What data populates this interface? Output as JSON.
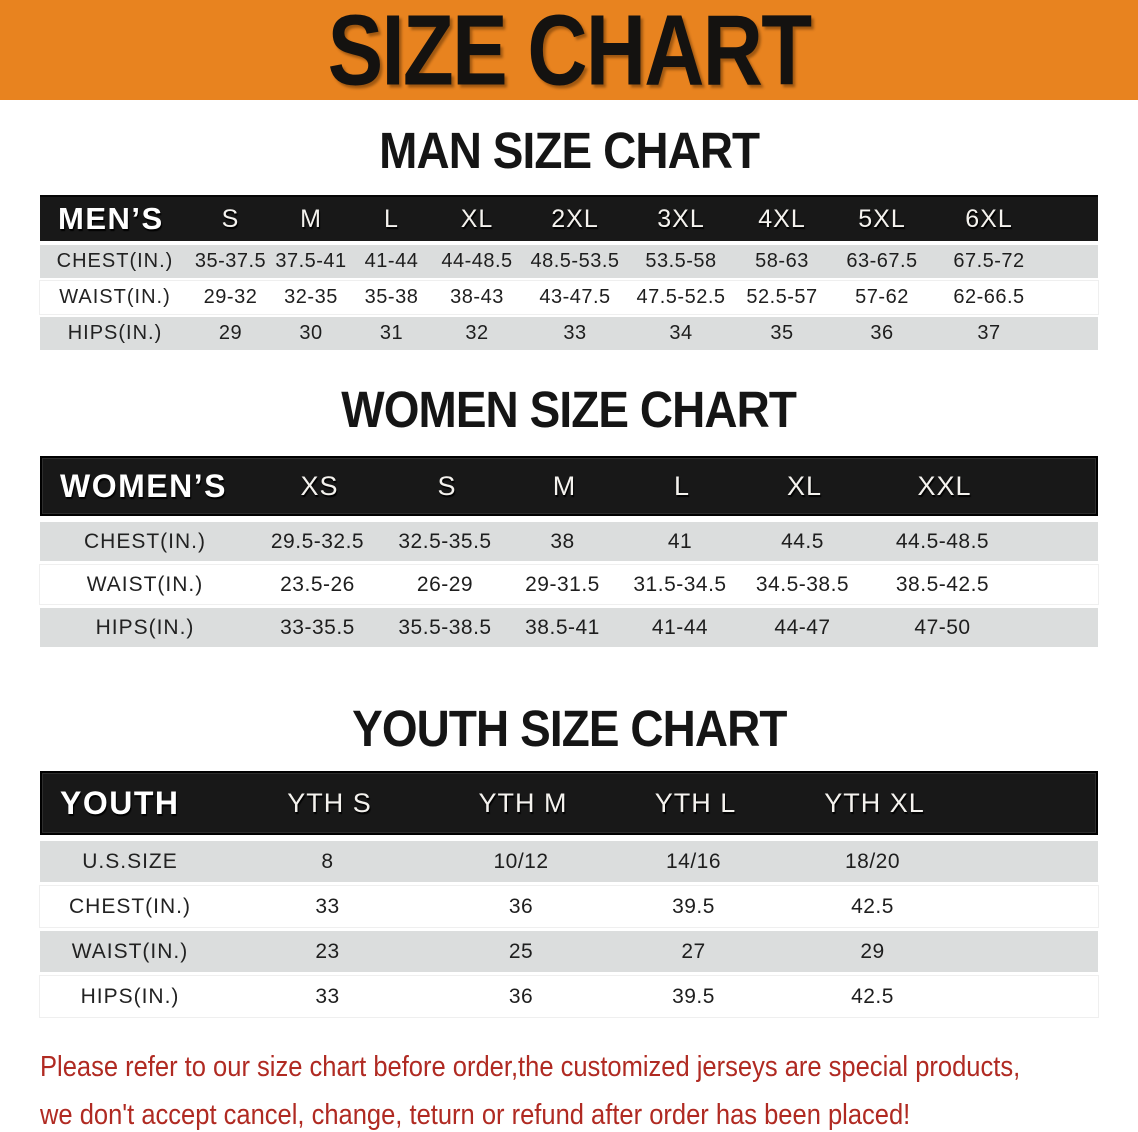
{
  "banner": {
    "title": "SIZE CHART",
    "bg_color": "#E8831F"
  },
  "sections": [
    {
      "title": "MAN SIZE CHART",
      "header_label": "MEN’S",
      "columns": [
        "S",
        "M",
        "L",
        "XL",
        "2XL",
        "3XL",
        "4XL",
        "5XL",
        "6XL"
      ],
      "rows": [
        {
          "label": "CHEST(IN.)",
          "values": [
            "35-37.5",
            "37.5-41",
            "41-44",
            "44-48.5",
            "48.5-53.5",
            "53.5-58",
            "58-63",
            "63-67.5",
            "67.5-72"
          ]
        },
        {
          "label": "WAIST(IN.)",
          "values": [
            "29-32",
            "32-35",
            "35-38",
            "38-43",
            "43-47.5",
            "47.5-52.5",
            "52.5-57",
            "57-62",
            "62-66.5"
          ]
        },
        {
          "label": "HIPS(IN.)",
          "values": [
            "29",
            "30",
            "31",
            "32",
            "33",
            "34",
            "35",
            "36",
            "37"
          ]
        }
      ]
    },
    {
      "title": "WOMEN SIZE CHART",
      "header_label": "WOMEN’S",
      "columns": [
        "XS",
        "S",
        "M",
        "L",
        "XL",
        "XXL"
      ],
      "rows": [
        {
          "label": "CHEST(IN.)",
          "values": [
            "29.5-32.5",
            "32.5-35.5",
            "38",
            "41",
            "44.5",
            "44.5-48.5"
          ]
        },
        {
          "label": "WAIST(IN.)",
          "values": [
            "23.5-26",
            "26-29",
            "29-31.5",
            "31.5-34.5",
            "34.5-38.5",
            "38.5-42.5"
          ]
        },
        {
          "label": "HIPS(IN.)",
          "values": [
            "33-35.5",
            "35.5-38.5",
            "38.5-41",
            "41-44",
            "44-47",
            "47-50"
          ]
        }
      ]
    },
    {
      "title": "YOUTH SIZE CHART",
      "header_label": "YOUTH",
      "columns": [
        "YTH S",
        "YTH M",
        "YTH L",
        "YTH XL"
      ],
      "rows": [
        {
          "label": "U.S.SIZE",
          "values": [
            "8",
            "10/12",
            "14/16",
            "18/20"
          ]
        },
        {
          "label": "CHEST(IN.)",
          "values": [
            "33",
            "36",
            "39.5",
            "42.5"
          ]
        },
        {
          "label": "WAIST(IN.)",
          "values": [
            "23",
            "25",
            "27",
            "29"
          ]
        },
        {
          "label": "HIPS(IN.)",
          "values": [
            "33",
            "36",
            "39.5",
            "42.5"
          ]
        }
      ]
    }
  ],
  "footer": {
    "line1": "Please refer to our size chart before order,the customized jerseys are special products,",
    "line2": "we don't accept cancel, change, teturn or refund after order has been placed!",
    "text_color": "#B02A22"
  }
}
